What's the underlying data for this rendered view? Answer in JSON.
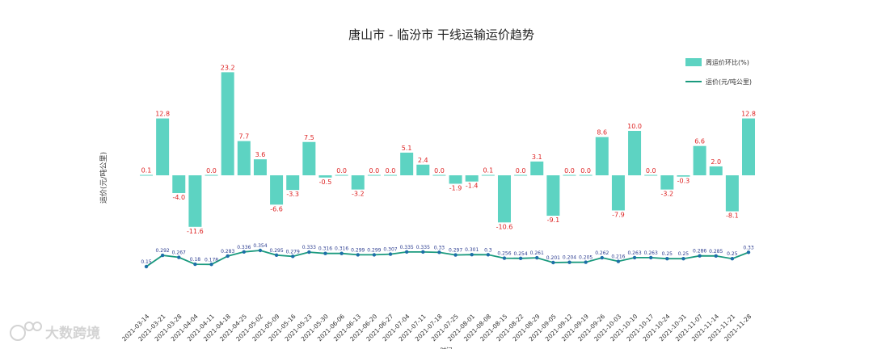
{
  "watermark": {
    "text": "大数跨境"
  },
  "chart_data": {
    "type": "bar+line",
    "title": "唐山市 - 临汾市 干线运输运价趋势",
    "ylabel": "运价(元/吨公里)",
    "xlabel": "时间",
    "legend": {
      "placement": "top-right",
      "bar_label": "周运价环比(%)",
      "line_label": "运价(元/吨公里)"
    },
    "colors": {
      "bar": "#5dd3c2",
      "line": "#1a9a7e",
      "line_marker": "#1d6fa8",
      "bar_label": "#d22222",
      "line_label": "#2a3b8f"
    },
    "categories": [
      "2021-03-14",
      "2021-03-21",
      "2021-03-28",
      "2021-04-04",
      "2021-04-11",
      "2021-04-18",
      "2021-04-25",
      "2021-05-02",
      "2021-05-09",
      "2021-05-16",
      "2021-05-23",
      "2021-05-30",
      "2021-06-06",
      "2021-06-13",
      "2021-06-20",
      "2021-06-27",
      "2021-07-04",
      "2021-07-11",
      "2021-07-18",
      "2021-07-25",
      "2021-08-01",
      "2021-08-08",
      "2021-08-15",
      "2021-08-22",
      "2021-08-29",
      "2021-09-05",
      "2021-09-12",
      "2021-09-19",
      "2021-09-26",
      "2021-10-03",
      "2021-10-10",
      "2021-10-17",
      "2021-10-24",
      "2021-10-31",
      "2021-11-07",
      "2021-11-14",
      "2021-11-21",
      "2021-11-28"
    ],
    "series": [
      {
        "name": "周运价环比(%)",
        "type": "bar",
        "values": [
          0.1,
          12.8,
          -4.0,
          -11.6,
          0.0,
          23.2,
          7.7,
          3.6,
          -6.6,
          -3.3,
          7.5,
          -0.5,
          0.0,
          -3.2,
          0.0,
          0.0,
          5.1,
          2.4,
          0.0,
          -1.9,
          -1.4,
          0.1,
          -10.6,
          0.0,
          3.1,
          -9.1,
          0.0,
          0.0,
          8.6,
          -7.9,
          10.0,
          0.0,
          -3.2,
          -0.3,
          6.6,
          2.0,
          -8.1,
          12.8
        ]
      },
      {
        "name": "运价(元/吨公里)",
        "type": "line",
        "values": [
          0.15,
          0.292,
          0.267,
          0.18,
          0.178,
          0.283,
          0.336,
          0.354,
          0.295,
          0.279,
          0.333,
          0.316,
          0.316,
          0.299,
          0.299,
          0.307,
          0.335,
          0.335,
          0.33,
          0.297,
          0.301,
          0.3,
          0.256,
          0.254,
          0.261,
          0.201,
          0.204,
          0.205,
          0.262,
          0.216,
          0.263,
          0.263,
          0.25,
          0.25,
          0.286,
          0.285,
          0.25,
          0.33
        ]
      }
    ]
  }
}
